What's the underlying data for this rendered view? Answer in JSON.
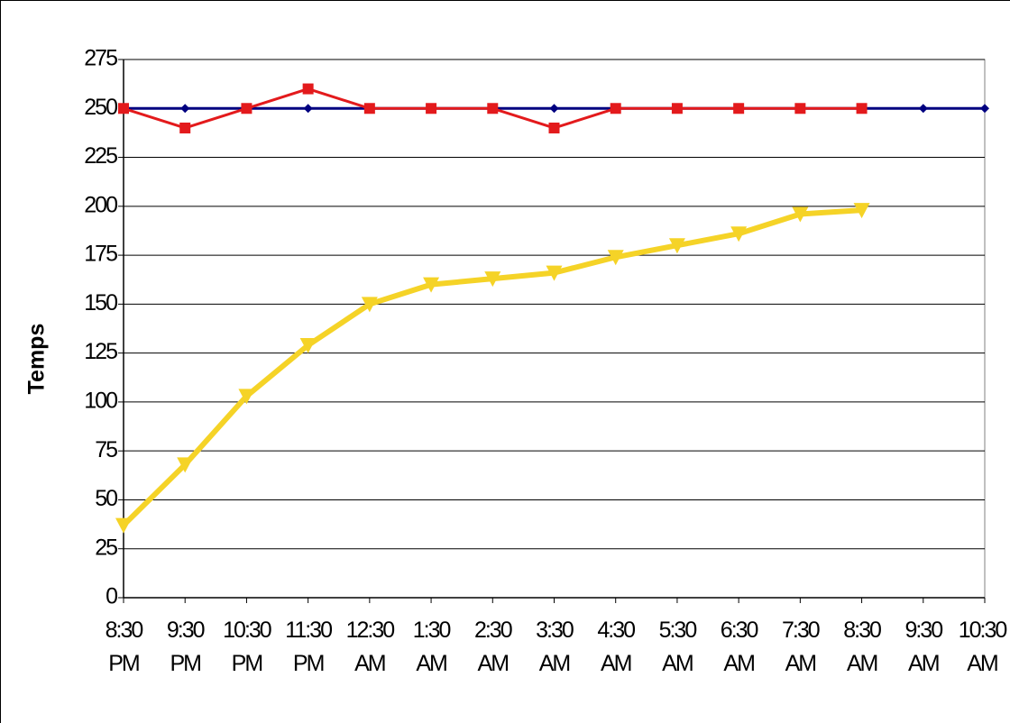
{
  "chart_data": {
    "type": "line",
    "y_label": "Temps",
    "categories": [
      "8:30 PM",
      "9:30 PM",
      "10:30 PM",
      "11:30 PM",
      "12:30 AM",
      "1:30 AM",
      "2:30 AM",
      "3:30 AM",
      "4:30 AM",
      "5:30 AM",
      "6:30 AM",
      "7:30 AM",
      "8:30 AM",
      "9:30 AM",
      "10:30 AM"
    ],
    "series": [
      {
        "color": "#000080",
        "marker": "diamond",
        "width": 3,
        "values": [
          250,
          250,
          250,
          250,
          250,
          250,
          250,
          250,
          250,
          250,
          250,
          250,
          250,
          250,
          250
        ]
      },
      {
        "color": "#e31a1c",
        "marker": "square",
        "width": 3,
        "values": [
          250,
          240,
          250,
          260,
          250,
          250,
          250,
          240,
          250,
          250,
          250,
          250,
          250,
          null,
          null
        ]
      },
      {
        "color": "#f5d327",
        "marker": "triangle-down",
        "width": 6,
        "values": [
          37,
          68,
          103,
          129,
          150,
          160,
          163,
          166,
          174,
          180,
          186,
          196,
          198,
          null,
          null
        ]
      }
    ],
    "ylim": [
      0,
      275
    ],
    "yticks": [
      0,
      25,
      50,
      75,
      100,
      125,
      150,
      175,
      200,
      225,
      250,
      275
    ],
    "grid": true
  }
}
